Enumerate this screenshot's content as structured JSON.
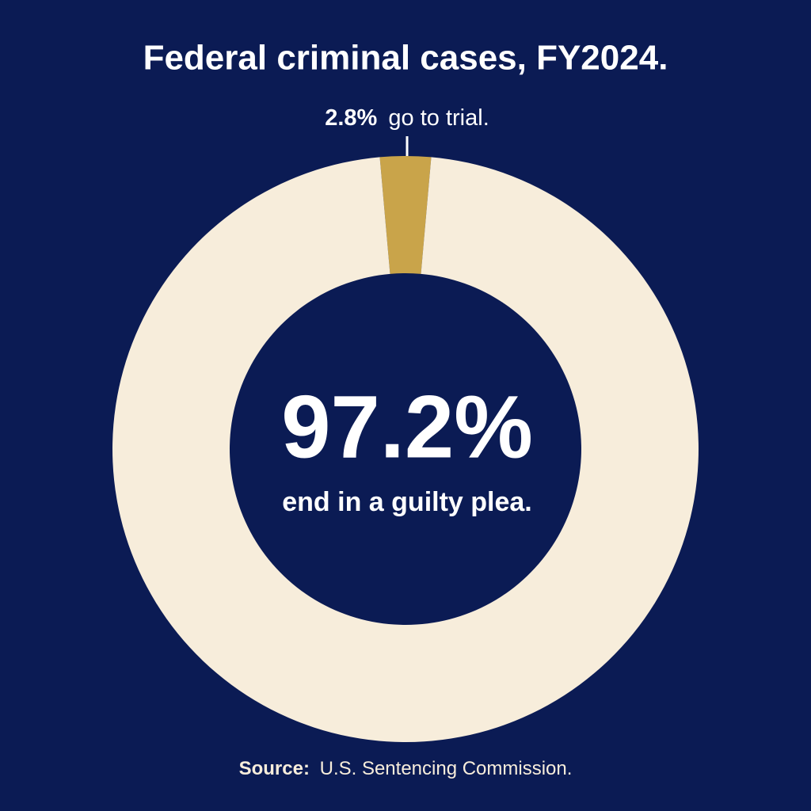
{
  "chart_data": {
    "type": "donut",
    "title": "Federal criminal cases, FY2024.",
    "categories": [
      "go to trial.",
      "end in a guilty plea."
    ],
    "values": [
      2.8,
      97.2
    ],
    "value_labels": [
      "2.8%",
      "97.2%"
    ],
    "colors": [
      "#c9a44a",
      "#f7eddb"
    ],
    "source_label": "Source:",
    "source": "U.S. Sentencing Commission."
  }
}
